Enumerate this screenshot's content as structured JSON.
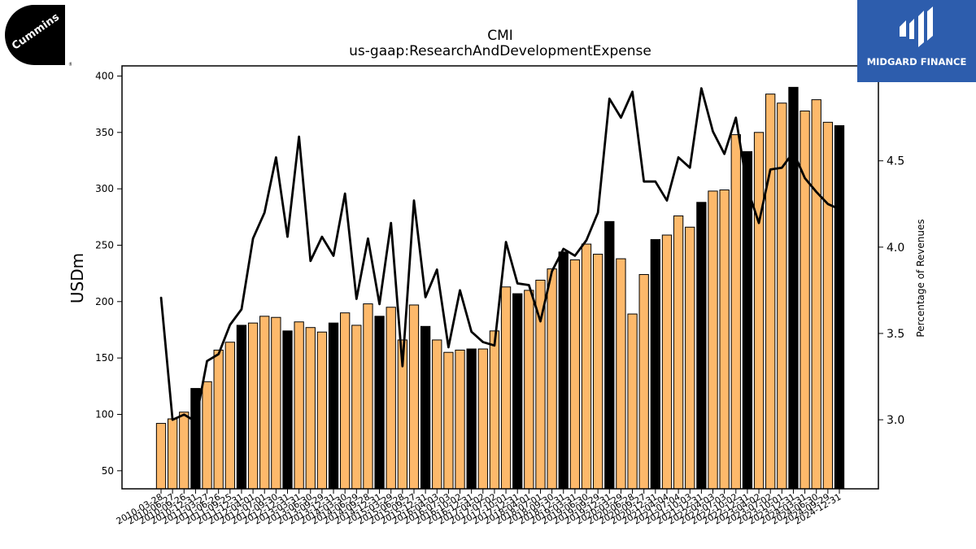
{
  "logos": {
    "left_brand": "Cummins",
    "right_brand": "MIDGARD FINANCE"
  },
  "chart_data": {
    "type": "bar",
    "title": "CMI",
    "subtitle": "us-gaap:ResearchAndDevelopmentExpense",
    "ylabel": "USDm",
    "y2label": "Percentage of Revenues",
    "ylim": [
      34,
      409
    ],
    "y2lim": [
      2.6,
      5.05
    ],
    "yticks": [
      50,
      100,
      150,
      200,
      250,
      300,
      350,
      400
    ],
    "y2ticks": [
      3.0,
      3.5,
      4.0,
      4.5
    ],
    "colors": {
      "quarter": "#fdb96b",
      "fiscal_year_end": "#000000",
      "line": "#000000"
    },
    "categories": [
      "2010-03-28",
      "2010-06-27",
      "2010-09-26",
      "2010-12-31",
      "2011-03-27",
      "2011-06-26",
      "2011-09-25",
      "2011-12-31",
      "2012-04-01",
      "2012-07-01",
      "2012-09-30",
      "2012-12-31",
      "2013-03-31",
      "2013-06-30",
      "2013-09-29",
      "2013-12-31",
      "2014-03-30",
      "2014-06-29",
      "2014-09-28",
      "2014-12-31",
      "2015-03-29",
      "2015-06-28",
      "2015-09-27",
      "2015-12-31",
      "2016-04-03",
      "2016-07-03",
      "2016-10-02",
      "2016-12-31",
      "2017-04-02",
      "2017-07-02",
      "2017-10-01",
      "2017-12-31",
      "2018-04-01",
      "2018-07-01",
      "2018-09-30",
      "2018-12-31",
      "2019-03-31",
      "2019-06-30",
      "2019-09-29",
      "2019-12-31",
      "2020-03-29",
      "2020-06-28",
      "2020-09-27",
      "2020-12-31",
      "2021-04-04",
      "2021-07-04",
      "2021-10-03",
      "2021-12-31",
      "2022-04-03",
      "2022-07-03",
      "2022-10-02",
      "2022-12-31",
      "2023-04-02",
      "2023-07-02",
      "2023-10-01",
      "2023-12-31",
      "2024-03-31",
      "2024-06-30",
      "2024-09-29",
      "2024-12-31"
    ],
    "fiscal_year_end": [
      false,
      false,
      false,
      true,
      false,
      false,
      false,
      true,
      false,
      false,
      false,
      true,
      false,
      false,
      false,
      true,
      false,
      false,
      false,
      true,
      false,
      false,
      false,
      true,
      false,
      false,
      false,
      true,
      false,
      false,
      false,
      true,
      false,
      false,
      false,
      true,
      false,
      false,
      false,
      true,
      false,
      false,
      false,
      true,
      false,
      false,
      false,
      true,
      false,
      false,
      false,
      true,
      false,
      false,
      false,
      true,
      false,
      false,
      false,
      true
    ],
    "series": [
      {
        "name": "",
        "type": "bar",
        "axis": "left",
        "values": [
          92,
          96,
          102,
          123,
          129,
          157,
          164,
          179,
          181,
          187,
          186,
          174,
          182,
          177,
          173,
          181,
          190,
          179,
          198,
          187,
          195,
          166,
          197,
          178,
          166,
          155,
          157,
          158,
          158,
          174,
          213,
          207,
          210,
          219,
          229,
          244,
          237,
          251,
          242,
          271,
          238,
          189,
          224,
          255,
          259,
          276,
          266,
          288,
          298,
          299,
          348,
          333,
          350,
          384,
          376,
          390,
          369,
          379,
          359,
          356
        ]
      },
      {
        "name": "",
        "type": "line",
        "axis": "right",
        "values": [
          3.71,
          3.0,
          3.03,
          2.99,
          3.34,
          3.38,
          3.55,
          3.64,
          4.05,
          4.2,
          4.52,
          4.06,
          4.64,
          3.92,
          4.06,
          3.95,
          4.31,
          3.7,
          4.05,
          3.67,
          4.14,
          3.31,
          4.27,
          3.71,
          3.87,
          3.42,
          3.75,
          3.51,
          3.45,
          3.43,
          4.03,
          3.79,
          3.78,
          3.57,
          3.86,
          3.99,
          3.95,
          4.04,
          4.2,
          4.86,
          4.75,
          4.9,
          4.38,
          4.38,
          4.27,
          4.52,
          4.46,
          4.92,
          4.67,
          4.54,
          4.75,
          4.34,
          4.14,
          4.45,
          4.46,
          4.55,
          4.4,
          4.32,
          4.25,
          4.22
        ]
      }
    ],
    "legend": "none",
    "grid": false
  }
}
